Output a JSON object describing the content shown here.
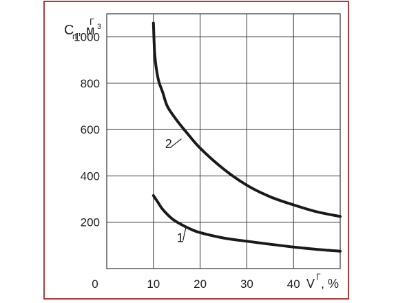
{
  "chart_data": {
    "type": "line",
    "title": "",
    "xlabel": "%",
    "ylabel": "",
    "x_axis_symbol": "V",
    "x_axis_superscript": "Г",
    "y_axis_symbol": "C",
    "y_axis_subscript": "п",
    "y_axis_superscript": "Г",
    "y_axis_unit": "м",
    "y_axis_unit_exponent": "3",
    "xlim": [
      0,
      50
    ],
    "ylim": [
      0,
      1100
    ],
    "x_ticks": [
      10,
      20,
      30,
      40
    ],
    "y_ticks": [
      200,
      400,
      600,
      800,
      1000
    ],
    "origin_label": "0",
    "grid": true,
    "legend": "none",
    "series": [
      {
        "name": "1",
        "color": "#1a1a1a",
        "x": [
          10,
          11,
          12,
          14,
          16,
          18,
          20,
          25,
          30,
          35,
          40,
          45,
          50
        ],
        "y": [
          315,
          285,
          255,
          215,
          190,
          170,
          155,
          132,
          118,
          105,
          93,
          83,
          75
        ]
      },
      {
        "name": "2",
        "color": "#1a1a1a",
        "x": [
          10,
          10.3,
          11,
          12,
          13,
          15,
          17,
          20,
          25,
          30,
          35,
          40,
          45,
          50
        ],
        "y": [
          1060,
          920,
          820,
          760,
          700,
          640,
          590,
          520,
          430,
          360,
          310,
          275,
          245,
          225
        ]
      }
    ],
    "annotations": [
      {
        "text": "1",
        "x": 15,
        "y": 115,
        "target_x": 17,
        "target_y": 182
      },
      {
        "text": "2",
        "x": 12.5,
        "y": 520,
        "target_x": 16,
        "target_y": 560
      }
    ]
  }
}
